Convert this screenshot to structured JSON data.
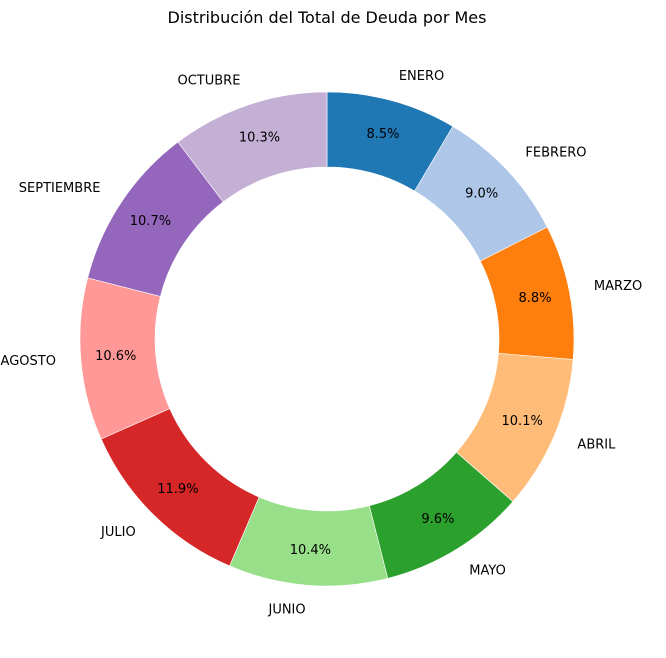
{
  "chart_data": {
    "type": "pie",
    "title": "Distribución del Total de Deuda por Mes",
    "donut": true,
    "start_angle_deg": 90,
    "direction": "clockwise",
    "slices": [
      {
        "label": "ENERO",
        "value": 8.5,
        "pct_label": "8.5%",
        "color": "#1f77b4"
      },
      {
        "label": "FEBRERO",
        "value": 9.0,
        "pct_label": "9.0%",
        "color": "#aec7e8"
      },
      {
        "label": "MARZO",
        "value": 8.8,
        "pct_label": "8.8%",
        "color": "#ff7f0e"
      },
      {
        "label": "ABRIL",
        "value": 10.1,
        "pct_label": "10.1%",
        "color": "#ffbb78"
      },
      {
        "label": "MAYO",
        "value": 9.6,
        "pct_label": "9.6%",
        "color": "#2ca02c"
      },
      {
        "label": "JUNIO",
        "value": 10.4,
        "pct_label": "10.4%",
        "color": "#98df8a"
      },
      {
        "label": "JULIO",
        "value": 11.9,
        "pct_label": "11.9%",
        "color": "#d62728"
      },
      {
        "label": "AGOSTO",
        "value": 10.6,
        "pct_label": "10.6%",
        "color": "#ff9896"
      },
      {
        "label": "SEPTIEMBRE",
        "value": 10.7,
        "pct_label": "10.7%",
        "color": "#9467bd"
      },
      {
        "label": "OCTUBRE",
        "value": 10.3,
        "pct_label": "10.3%",
        "color": "#c5b0d5"
      }
    ]
  }
}
